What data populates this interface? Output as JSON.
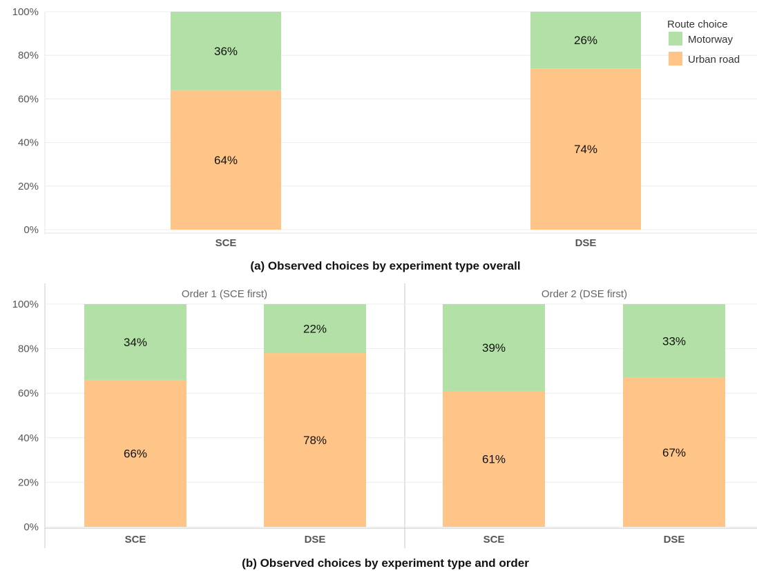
{
  "legend": {
    "title": "Route choice",
    "position": "top-right",
    "items": [
      {
        "label": "Motorway",
        "color": "#b3e0a6"
      },
      {
        "label": "Urban road",
        "color": "#ffc588"
      }
    ]
  },
  "chart_data": [
    {
      "type": "bar",
      "stacked": true,
      "title": "(a) Observed choices by experiment type overall",
      "categories": [
        "SCE",
        "DSE"
      ],
      "series": [
        {
          "name": "Urban road",
          "color": "#ffc588",
          "values": [
            64,
            74
          ]
        },
        {
          "name": "Motorway",
          "color": "#b3e0a6",
          "values": [
            36,
            26
          ]
        }
      ],
      "ylim": [
        0,
        100
      ],
      "yticks": [
        "0%",
        "20%",
        "40%",
        "60%",
        "80%",
        "100%"
      ],
      "grid": true
    },
    {
      "type": "bar",
      "stacked": true,
      "title": "(b) Observed choices by experiment type and order",
      "facets": [
        {
          "label": "Order 1 (SCE first)",
          "categories": [
            "SCE",
            "DSE"
          ],
          "series": [
            {
              "name": "Urban road",
              "values": [
                66,
                78
              ]
            },
            {
              "name": "Motorway",
              "values": [
                34,
                22
              ]
            }
          ]
        },
        {
          "label": "Order 2 (DSE first)",
          "categories": [
            "SCE",
            "DSE"
          ],
          "series": [
            {
              "name": "Urban road",
              "values": [
                61,
                67
              ]
            },
            {
              "name": "Motorway",
              "values": [
                39,
                33
              ]
            }
          ]
        }
      ],
      "ylim": [
        0,
        100
      ],
      "yticks": [
        "0%",
        "20%",
        "40%",
        "60%",
        "80%",
        "100%"
      ],
      "grid": true
    }
  ]
}
